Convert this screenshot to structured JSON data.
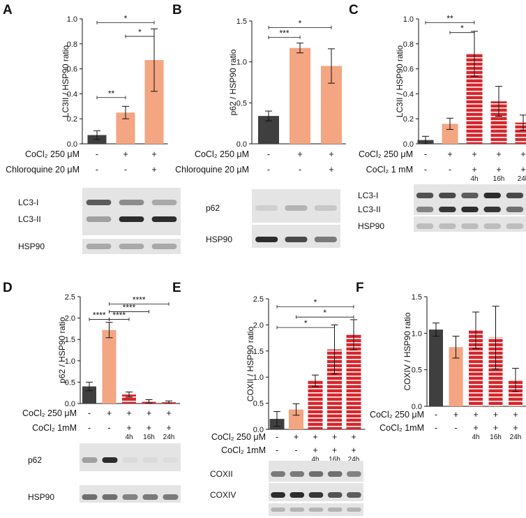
{
  "colors": {
    "control": "#3f3f3f",
    "cocl250": "#f4a582",
    "cocl1mm": "#d7262b",
    "stripe": "#ffffff",
    "blot_bg": "#e4e4e4",
    "band": "#222222"
  },
  "chart_data": [
    {
      "id": "A",
      "type": "bar",
      "panel_label": "A",
      "ylabel": "LC3II / HSP90 ratio",
      "ylim": [
        0,
        1.0
      ],
      "yticks": [
        "0.0",
        "0.2",
        "0.4",
        "0.6",
        "0.8",
        "1.0"
      ],
      "values": [
        0.07,
        0.25,
        0.67
      ],
      "errors": [
        0.035,
        0.05,
        0.25
      ],
      "fills": [
        "control",
        "cocl250",
        "cocl250"
      ],
      "conditions": [
        {
          "label": "CoCl₂ 250 μM",
          "marks": [
            "-",
            "+",
            "+"
          ]
        },
        {
          "label": "Chloroquine 20 μM",
          "marks": [
            "-",
            "-",
            "+"
          ]
        }
      ],
      "significance": [
        {
          "from": 0,
          "to": 2,
          "y": 0.97,
          "text": "*"
        },
        {
          "from": 1,
          "to": 2,
          "y": 0.86,
          "text": "*"
        },
        {
          "from": 0,
          "to": 1,
          "y": 0.37,
          "text": "**"
        }
      ],
      "blot_labels": [
        "LC3-I",
        "LC3-II",
        "HSP90"
      ]
    },
    {
      "id": "B",
      "type": "bar",
      "panel_label": "B",
      "ylabel": "p62 / HSP90 ratio",
      "ylim": [
        0,
        1.5
      ],
      "yticks": [
        "0.0",
        "0.5",
        "1.0",
        "1.5"
      ],
      "values": [
        0.34,
        1.17,
        0.95
      ],
      "errors": [
        0.06,
        0.06,
        0.21
      ],
      "fills": [
        "control",
        "cocl250",
        "cocl250"
      ],
      "conditions": [
        {
          "label": "CoCl₂ 250 μM",
          "marks": [
            "-",
            "+",
            "+"
          ]
        },
        {
          "label": "Chloroquine 20 μM",
          "marks": [
            "-",
            "-",
            "+"
          ]
        }
      ],
      "significance": [
        {
          "from": 0,
          "to": 2,
          "y": 1.42,
          "text": "*"
        },
        {
          "from": 0,
          "to": 1,
          "y": 1.3,
          "text": "***"
        }
      ],
      "blot_labels": [
        "p62",
        "HSP90"
      ]
    },
    {
      "id": "C",
      "type": "bar",
      "panel_label": "C",
      "ylabel": "LC3II / HSP90 ratio",
      "ylim": [
        0,
        1.0
      ],
      "yticks": [
        "0.0",
        "0.2",
        "0.4",
        "0.6",
        "0.8",
        "1.0"
      ],
      "values": [
        0.03,
        0.16,
        0.72,
        0.34,
        0.17
      ],
      "errors": [
        0.03,
        0.045,
        0.18,
        0.12,
        0.06
      ],
      "fills": [
        "control",
        "cocl250",
        "cocl1mm",
        "cocl1mm",
        "cocl1mm"
      ],
      "conditions": [
        {
          "label": "CoCl₂ 250 μM",
          "marks": [
            "-",
            "+",
            "+",
            "+",
            "+"
          ]
        },
        {
          "label": "CoCl₂ 1 mM",
          "marks": [
            "-",
            "-",
            "+",
            "+",
            "+"
          ],
          "sub": [
            "",
            "",
            "4h",
            "16h",
            "24h"
          ]
        }
      ],
      "significance": [
        {
          "from": 0,
          "to": 2,
          "y": 0.97,
          "text": "**"
        },
        {
          "from": 1,
          "to": 2,
          "y": 0.89,
          "text": "*"
        }
      ],
      "blot_labels": [
        "LC3-I",
        "LC3-II",
        "HSP90"
      ]
    },
    {
      "id": "D",
      "type": "bar",
      "panel_label": "D",
      "ylabel": "p62 / HSP90 ratio",
      "ylim": [
        0,
        2.5
      ],
      "yticks": [
        "0.0",
        "0.5",
        "1.0",
        "1.5",
        "2.0",
        "2.5"
      ],
      "values": [
        0.4,
        1.72,
        0.21,
        0.05,
        0.03
      ],
      "errors": [
        0.1,
        0.18,
        0.06,
        0.04,
        0.03
      ],
      "fills": [
        "control",
        "cocl250",
        "cocl1mm",
        "cocl1mm",
        "cocl1mm"
      ],
      "conditions": [
        {
          "label": "CoCl₂ 250 μM",
          "marks": [
            "-",
            "+",
            "+",
            "+",
            "+"
          ]
        },
        {
          "label": "CoCl₂ 1mM",
          "marks": [
            "-",
            "-",
            "+",
            "+",
            "+"
          ],
          "sub": [
            "",
            "",
            "4h",
            "16h",
            "24h"
          ]
        }
      ],
      "significance": [
        {
          "from": 1,
          "to": 4,
          "y": 2.33,
          "text": "****"
        },
        {
          "from": 1,
          "to": 3,
          "y": 2.15,
          "text": "****"
        },
        {
          "from": 1,
          "to": 2,
          "y": 1.97,
          "text": "****"
        },
        {
          "from": 0,
          "to": 1,
          "y": 1.97,
          "text": "****"
        }
      ],
      "blot_labels": [
        "p62",
        "HSP90"
      ]
    },
    {
      "id": "E",
      "type": "bar",
      "panel_label": "E",
      "ylabel": "COXII / HSP90 ratio",
      "ylim": [
        0,
        2.5
      ],
      "yticks": [
        "0.0",
        "0.5",
        "1.0",
        "1.5",
        "2.0",
        "2.5"
      ],
      "values": [
        0.2,
        0.38,
        0.93,
        1.53,
        1.81
      ],
      "errors": [
        0.14,
        0.11,
        0.11,
        0.47,
        0.29
      ],
      "fills": [
        "control",
        "cocl250",
        "cocl1mm",
        "cocl1mm",
        "cocl1mm"
      ],
      "conditions": [
        {
          "label": "CoCl₂  250 μM",
          "marks": [
            "-",
            "+",
            "+",
            "+",
            "+"
          ]
        },
        {
          "label": "CoCl₂ 1mM",
          "marks": [
            "-",
            "-",
            "+",
            "+",
            "+"
          ],
          "sub": [
            "",
            "",
            "4h",
            "16h",
            "24h"
          ]
        }
      ],
      "significance": [
        {
          "from": 0,
          "to": 4,
          "y": 2.35,
          "text": "*"
        },
        {
          "from": 1,
          "to": 4,
          "y": 2.15,
          "text": "*"
        },
        {
          "from": 0,
          "to": 3,
          "y": 1.95,
          "text": "*"
        }
      ],
      "blot_labels": [
        "COXII",
        "COXIV"
      ]
    },
    {
      "id": "F",
      "type": "bar",
      "panel_label": "F",
      "ylabel": "COXIV / HSP90 ratio",
      "ylim": [
        0,
        1.5
      ],
      "yticks": [
        "0.0",
        "0.5",
        "1.0",
        "1.5"
      ],
      "values": [
        1.05,
        0.81,
        1.04,
        0.94,
        0.36
      ],
      "errors": [
        0.09,
        0.15,
        0.25,
        0.43,
        0.16
      ],
      "fills": [
        "control",
        "cocl250",
        "cocl1mm",
        "cocl1mm",
        "cocl1mm"
      ],
      "conditions": [
        {
          "label": "CoCl₂  250 μM",
          "marks": [
            "-",
            "+",
            "+",
            "+",
            "+"
          ]
        },
        {
          "label": "CoCl₂ 1mM",
          "marks": [
            "-",
            "-",
            "+",
            "+",
            "+"
          ],
          "sub": [
            "",
            "",
            "4h",
            "16h",
            "24h"
          ]
        }
      ],
      "significance": [],
      "blot_labels": []
    }
  ]
}
